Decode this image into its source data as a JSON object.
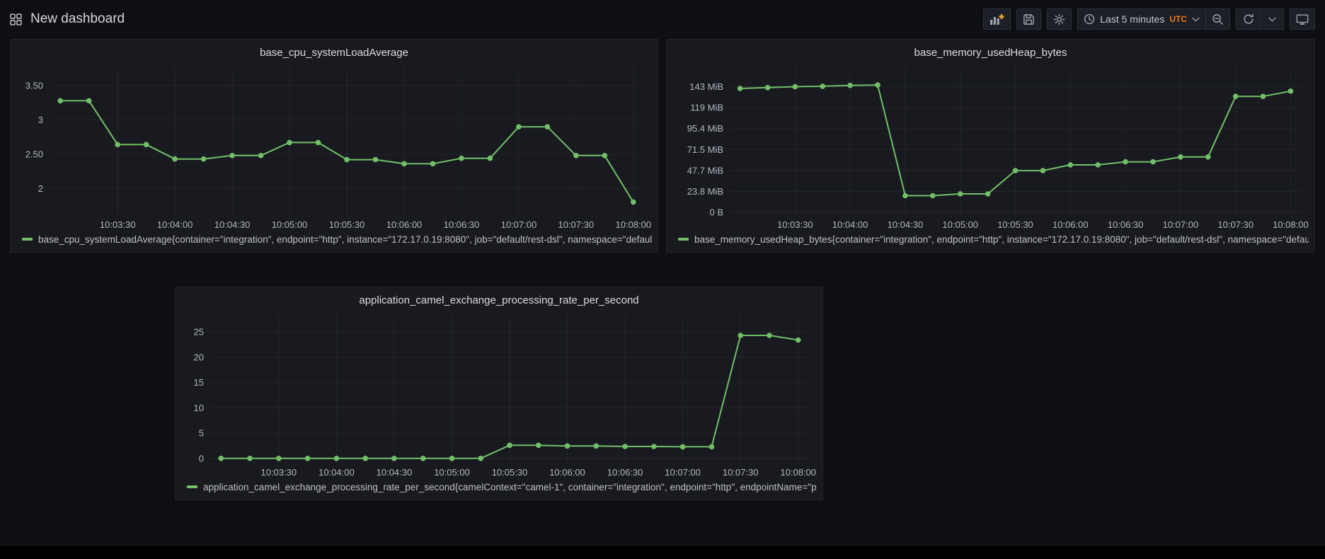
{
  "navbar": {
    "title": "New dashboard",
    "add_panel_tooltip": "add-panel",
    "time_picker": {
      "label": "Last 5 minutes",
      "timezone": "UTC"
    }
  },
  "colors": {
    "series_green": "#73bf69",
    "accent_orange": "#eb7b18",
    "panel_bg": "#181a1f",
    "page_bg": "#0e0f13"
  },
  "icons": {
    "nav_logo": "grid-four-squares",
    "toolbar": [
      "add-panel",
      "save-dashboard",
      "dashboard-settings",
      "clock",
      "chevron-down",
      "zoom-out",
      "refresh",
      "refresh-interval-chevron",
      "cycle-view-mode-monitor"
    ]
  },
  "chart_data": [
    {
      "type": "line",
      "title": "base_cpu_systemLoadAverage",
      "legend_label": "base_cpu_systemLoadAverage{container=\"integration\", endpoint=\"http\", instance=\"172.17.0.19:8080\", job=\"default/rest-dsl\", namespace=\"default\", pod=\"rest-d",
      "color": "#73bf69",
      "x": [
        0,
        15,
        30,
        45,
        60,
        75,
        90,
        105,
        120,
        135,
        150,
        165,
        180,
        195,
        210,
        225,
        240,
        255,
        270,
        285,
        300
      ],
      "values": [
        3.28,
        3.28,
        2.64,
        2.64,
        2.43,
        2.43,
        2.48,
        2.48,
        2.67,
        2.67,
        2.42,
        2.42,
        2.36,
        2.36,
        2.44,
        2.44,
        2.9,
        2.9,
        2.48,
        2.48,
        1.8
      ],
      "xlim": [
        -6,
        306
      ],
      "ylim": [
        1.6,
        3.78
      ],
      "x_ticks": [
        30,
        60,
        90,
        120,
        150,
        180,
        210,
        240,
        270,
        300
      ],
      "x_tick_labels": [
        "10:03:30",
        "10:04:00",
        "10:04:30",
        "10:05:00",
        "10:05:30",
        "10:06:00",
        "10:06:30",
        "10:07:00",
        "10:07:30",
        "10:08:00"
      ],
      "y_ticks": [
        2,
        2.5,
        3,
        3.5
      ],
      "y_tick_labels": [
        "2",
        "2.50",
        "3",
        "3.50"
      ],
      "grid": true,
      "legend_position": "bottom-left",
      "margin_left": 46
    },
    {
      "type": "line",
      "title": "base_memory_usedHeap_bytes",
      "legend_label": "base_memory_usedHeap_bytes{container=\"integration\", endpoint=\"http\", instance=\"172.17.0.19:8080\", job=\"default/rest-dsl\", namespace=\"default\", pod=\"rest-…",
      "color": "#73bf69",
      "x": [
        0,
        15,
        30,
        45,
        60,
        75,
        90,
        105,
        120,
        135,
        150,
        165,
        180,
        195,
        210,
        225,
        240,
        255,
        270,
        285,
        300
      ],
      "values": [
        141,
        142,
        143,
        143.5,
        144.5,
        145,
        19,
        19,
        21,
        21,
        47.5,
        47.5,
        54,
        54,
        57.5,
        57.5,
        63,
        63,
        132,
        132,
        138
      ],
      "unit": "MiB",
      "xlim": [
        -6,
        306
      ],
      "ylim": [
        -4,
        166
      ],
      "x_ticks": [
        30,
        60,
        90,
        120,
        150,
        180,
        210,
        240,
        270,
        300
      ],
      "x_tick_labels": [
        "10:03:30",
        "10:04:00",
        "10:04:30",
        "10:05:00",
        "10:05:30",
        "10:06:00",
        "10:06:30",
        "10:07:00",
        "10:07:30",
        "10:08:00"
      ],
      "y_ticks": [
        0,
        23.8,
        47.7,
        71.5,
        95.4,
        119.2,
        143
      ],
      "y_tick_labels": [
        "0 B",
        "23.8 MiB",
        "47.7 MiB",
        "71.5 MiB",
        "95.4 MiB",
        "119 MiB",
        "143 MiB"
      ],
      "grid": true,
      "legend_position": "bottom-left",
      "margin_left": 80
    },
    {
      "type": "line",
      "title": "application_camel_exchange_processing_rate_per_second",
      "legend_label": "application_camel_exchange_processing_rate_per_second{camelContext=\"camel-1\", container=\"integration\", endpoint=\"http\", endpointName=\"platform-http:///",
      "color": "#73bf69",
      "x": [
        0,
        15,
        30,
        45,
        60,
        75,
        90,
        105,
        120,
        135,
        150,
        165,
        180,
        195,
        210,
        225,
        240,
        255,
        270,
        285,
        300
      ],
      "values": [
        0,
        0,
        0,
        0,
        0,
        0,
        0,
        0,
        0,
        0,
        2.6,
        2.6,
        2.45,
        2.45,
        2.35,
        2.35,
        2.3,
        2.3,
        24.3,
        24.3,
        23.4
      ],
      "xlim": [
        -6,
        306
      ],
      "ylim": [
        -1,
        28.5
      ],
      "x_ticks": [
        30,
        60,
        90,
        120,
        150,
        180,
        210,
        240,
        270,
        300
      ],
      "x_tick_labels": [
        "10:03:30",
        "10:04:00",
        "10:04:30",
        "10:05:00",
        "10:05:30",
        "10:06:00",
        "10:06:30",
        "10:07:00",
        "10:07:30",
        "10:08:00"
      ],
      "y_ticks": [
        0,
        5,
        10,
        15,
        20,
        25
      ],
      "y_tick_labels": [
        "0",
        "5",
        "10",
        "15",
        "20",
        "25"
      ],
      "grid": true,
      "legend_position": "bottom-left",
      "margin_left": 40
    }
  ]
}
